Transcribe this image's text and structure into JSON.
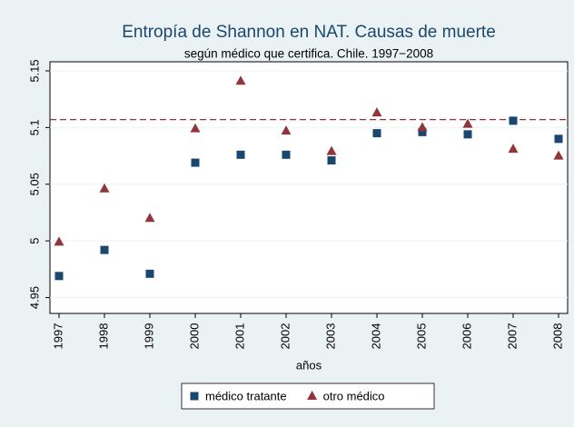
{
  "chart_data": {
    "type": "scatter",
    "title": "Entropía de Shannon en NAT. Causas de muerte",
    "subtitle": "según médico que certifica. Chile. 1997−2008",
    "x_label": "años",
    "x": [
      1997,
      1998,
      1999,
      2000,
      2001,
      2002,
      2003,
      2004,
      2005,
      2006,
      2007,
      2008
    ],
    "series": [
      {
        "name": "médico tratante",
        "color": "#1a476f",
        "marker": "square",
        "values": [
          4.969,
          4.992,
          4.971,
          5.069,
          5.076,
          5.076,
          5.071,
          5.095,
          5.096,
          5.094,
          5.106,
          5.09
        ]
      },
      {
        "name": "otro médico",
        "color": "#90353b",
        "marker": "triangle",
        "values": [
          4.999,
          5.046,
          5.02,
          5.099,
          5.141,
          5.097,
          5.079,
          5.113,
          5.1,
          5.103,
          5.081,
          5.075
        ]
      }
    ],
    "reference_line": {
      "value": 5.107,
      "color": "#90353b"
    },
    "xlim": [
      1996.8,
      2008.2
    ],
    "xticks": [
      1997,
      1998,
      1999,
      2000,
      2001,
      2002,
      2003,
      2004,
      2005,
      2006,
      2007,
      2008
    ],
    "ylim": [
      4.936,
      5.158
    ],
    "yticks": [
      4.95,
      5,
      5.05,
      5.1,
      5.15
    ],
    "grid": true,
    "legend": "bottom"
  }
}
